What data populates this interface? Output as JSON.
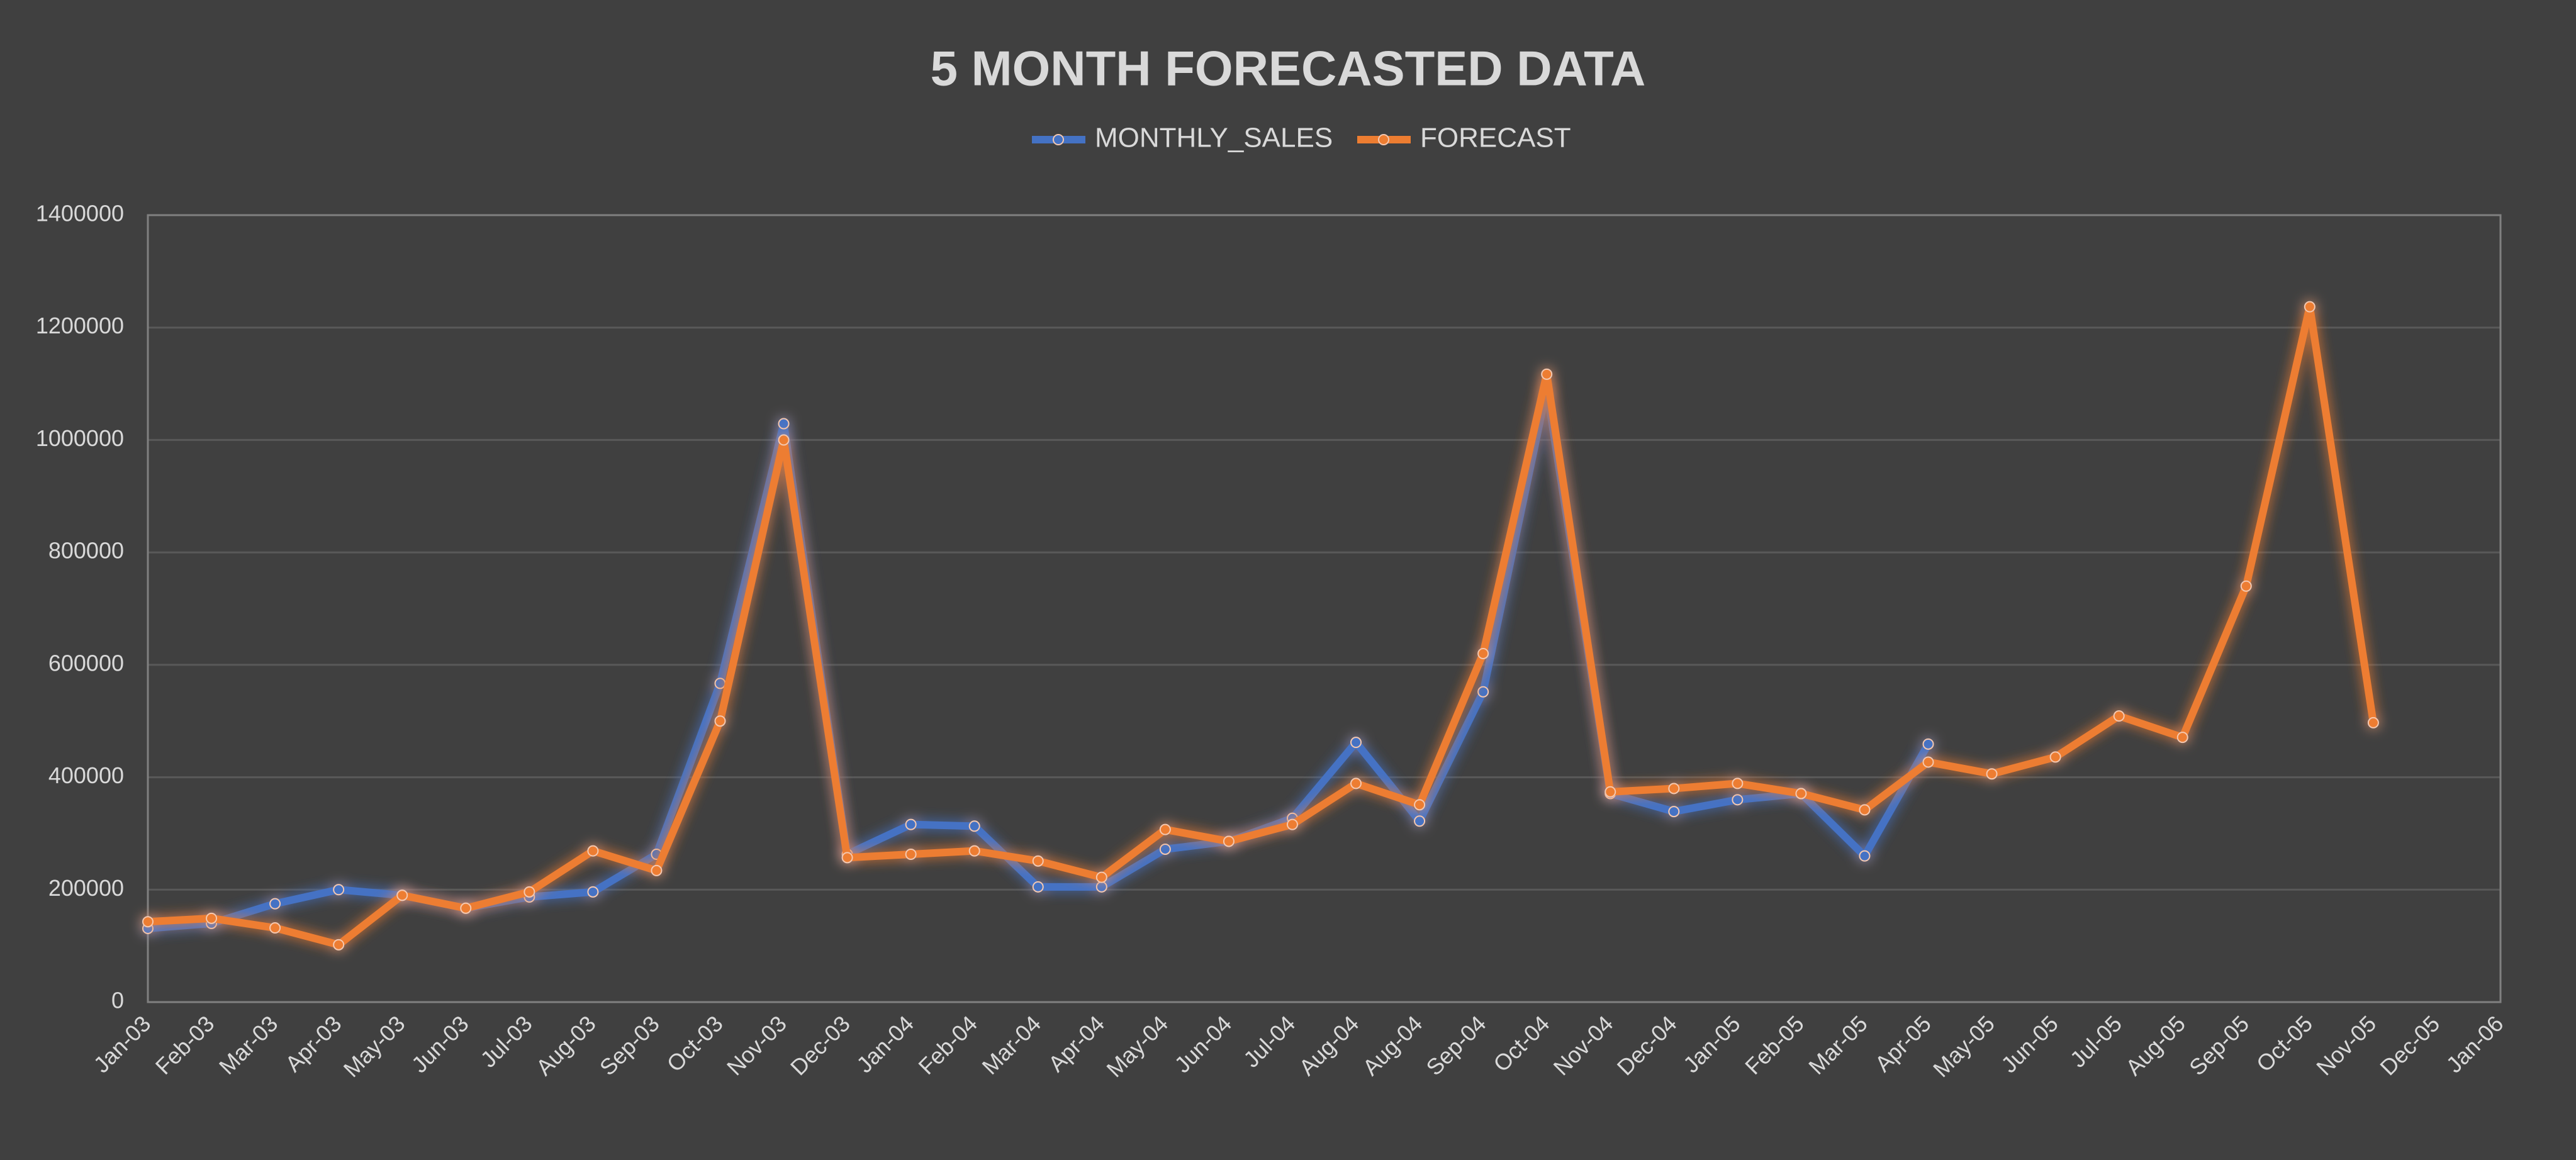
{
  "chart_data": {
    "type": "line",
    "title": "5 MONTH FORECASTED DATA",
    "categories": [
      "Jan-03",
      "Feb-03",
      "Mar-03",
      "Apr-03",
      "May-03",
      "Jun-03",
      "Jul-03",
      "Aug-03",
      "Sep-03",
      "Oct-03",
      "Nov-03",
      "Dec-03",
      "Jan-04",
      "Feb-04",
      "Mar-04",
      "Apr-04",
      "May-04",
      "Jun-04",
      "Jul-04",
      "Aug-04",
      "Aug-04",
      "Sep-04",
      "Oct-04",
      "Nov-04",
      "Dec-04",
      "Jan-05",
      "Feb-05",
      "Mar-05",
      "Apr-05",
      "May-05",
      "Jun-05",
      "Jul-05",
      "Aug-05",
      "Sep-05",
      "Oct-05",
      "Nov-05",
      "Dec-05",
      "Jan-06"
    ],
    "series": [
      {
        "name": "MONTHLY_SALES",
        "color": "#4472c4",
        "values": [
          131000,
          140000,
          175000,
          200000,
          190000,
          167000,
          187000,
          196000,
          263000,
          567000,
          1029000,
          263000,
          316000,
          313000,
          205000,
          205000,
          272000,
          286000,
          327000,
          462000,
          322000,
          552000,
          1090000,
          371000,
          339000,
          360000,
          371000,
          260000,
          459000,
          null,
          null,
          null,
          null,
          null,
          null,
          null,
          null,
          null
        ]
      },
      {
        "name": "FORECAST",
        "color": "#ed7d31",
        "values": [
          143000,
          149000,
          132000,
          102000,
          190000,
          167000,
          196000,
          269000,
          234000,
          500000,
          1000000,
          257000,
          263000,
          269000,
          251000,
          222000,
          307000,
          286000,
          316000,
          389000,
          351000,
          620000,
          1117000,
          374000,
          380000,
          389000,
          371000,
          342000,
          427000,
          406000,
          436000,
          509000,
          471000,
          740000,
          1237000,
          497000,
          null,
          null
        ]
      }
    ],
    "ylim": [
      0,
      1400000
    ],
    "yticks": [
      0,
      200000,
      400000,
      600000,
      800000,
      1000000,
      1200000,
      1400000
    ],
    "grid": true,
    "legend": "top"
  }
}
